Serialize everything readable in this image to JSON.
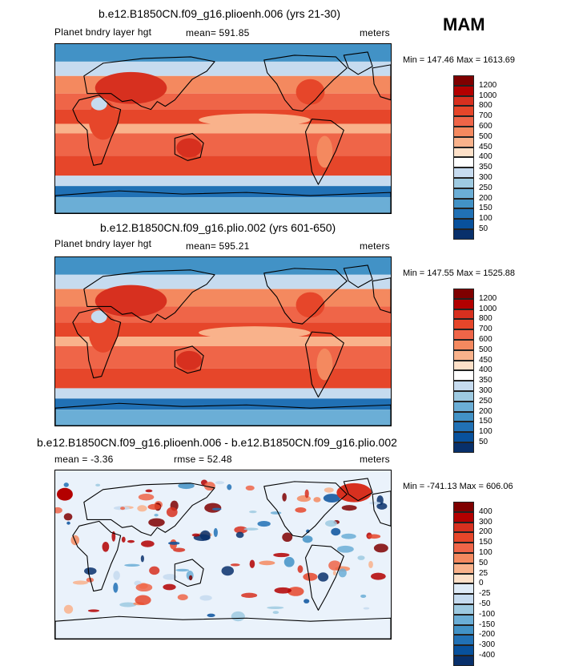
{
  "season": "MAM",
  "panels": [
    {
      "title": "b.e12.B1850CN.f09_g16.plioenh.006 (yrs 21-30)",
      "variable": "Planet bndry layer hgt",
      "stat": "mean=  591.85",
      "units": "meters",
      "minmax": "Min = 147.46 Max = 1613.69",
      "levels": [
        "1200",
        "1000",
        "800",
        "700",
        "600",
        "500",
        "450",
        "400",
        "350",
        "300",
        "250",
        "200",
        "150",
        "100",
        "50"
      ],
      "colors": [
        "#7f0000",
        "#b30000",
        "#d7301f",
        "#e6462a",
        "#ef6548",
        "#f4895f",
        "#f9b28b",
        "#fde0c8",
        "#ffffff",
        "#c6dbef",
        "#9ecae1",
        "#6baed6",
        "#4292c6",
        "#2171b5",
        "#08519c",
        "#08306b"
      ],
      "kind": "abs"
    },
    {
      "title": "b.e12.B1850CN.f09_g16.plio.002 (yrs 601-650)",
      "variable": "Planet bndry layer hgt",
      "stat": "mean=  595.21",
      "units": "meters",
      "minmax": "Min = 147.55 Max = 1525.88",
      "levels": [
        "1200",
        "1000",
        "800",
        "700",
        "600",
        "500",
        "450",
        "400",
        "350",
        "300",
        "250",
        "200",
        "150",
        "100",
        "50"
      ],
      "colors": [
        "#7f0000",
        "#b30000",
        "#d7301f",
        "#e6462a",
        "#ef6548",
        "#f4895f",
        "#f9b28b",
        "#fde0c8",
        "#ffffff",
        "#c6dbef",
        "#9ecae1",
        "#6baed6",
        "#4292c6",
        "#2171b5",
        "#08519c",
        "#08306b"
      ],
      "kind": "abs"
    },
    {
      "title": "b.e12.B1850CN.f09_g16.plioenh.006 - b.e12.B1850CN.f09_g16.plio.002",
      "stat_mean": "mean =   -3.36",
      "stat_rmse": "rmse =   52.48",
      "units": "meters",
      "minmax": "Min = -741.13 Max = 606.06",
      "levels": [
        "400",
        "300",
        "200",
        "150",
        "100",
        "50",
        "25",
        "0",
        "-25",
        "-50",
        "-100",
        "-150",
        "-200",
        "-300",
        "-400"
      ],
      "colors": [
        "#7f0000",
        "#b30000",
        "#d7301f",
        "#e6462a",
        "#ef6548",
        "#f4895f",
        "#f9b28b",
        "#fde0c8",
        "#deebf7",
        "#c6dbef",
        "#9ecae1",
        "#6baed6",
        "#4292c6",
        "#2171b5",
        "#08519c",
        "#08306b"
      ],
      "kind": "diff"
    }
  ]
}
